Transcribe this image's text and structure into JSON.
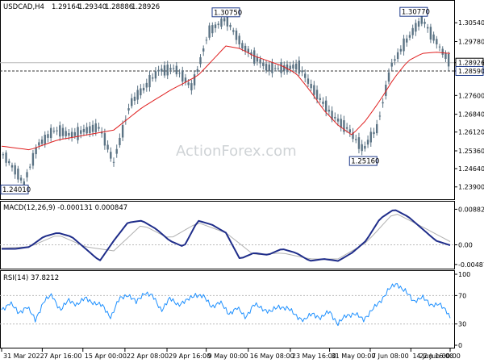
{
  "watermark": "ActionForex.com",
  "chart_data": [
    {
      "type": "candlestick",
      "panel": "price",
      "symbol": "USDCAD,H4",
      "ohlc": {
        "open": "1.29164",
        "high": "1.29340",
        "low": "1.28886",
        "close": "1.28926"
      },
      "ylim": [
        1.235,
        1.312
      ],
      "yticks": [
        "1.30540",
        "1.29780",
        "1.28926",
        "1.28590",
        "1.27600",
        "1.26840",
        "1.26120",
        "1.25360",
        "1.24640",
        "1.23900"
      ],
      "current_price": "1.28926",
      "level_line": "1.28590",
      "annotations": [
        {
          "text": "1.24010",
          "x": "31 Mar 2022",
          "y": 1.2401
        },
        {
          "text": "1.30750",
          "x": "12 May 2022",
          "y": 1.3075
        },
        {
          "text": "1.25160",
          "x": "8 Jun 2022",
          "y": 1.2516
        },
        {
          "text": "1.30770",
          "x": "17 Jun 2022",
          "y": 1.3077
        }
      ],
      "series": [
        {
          "name": "price",
          "color": "#5b7384",
          "x": [
            0,
            4,
            8,
            13,
            19,
            25,
            30,
            35,
            40,
            46,
            51,
            56,
            62,
            68,
            74,
            80,
            86,
            90,
            95,
            101,
            106,
            112,
            118,
            124,
            129,
            134,
            139,
            145,
            150,
            155,
            160
          ],
          "values": [
            1.253,
            1.247,
            1.2405,
            1.256,
            1.262,
            1.26,
            1.262,
            1.263,
            1.249,
            1.273,
            1.279,
            1.286,
            1.287,
            1.279,
            1.302,
            1.307,
            1.296,
            1.292,
            1.287,
            1.287,
            1.288,
            1.277,
            1.268,
            1.262,
            1.254,
            1.263,
            1.288,
            1.299,
            1.307,
            1.298,
            1.289
          ]
        },
        {
          "name": "moving average",
          "color": "#e02020",
          "x": [
            0,
            10,
            20,
            30,
            40,
            50,
            60,
            70,
            80,
            85,
            90,
            95,
            100,
            105,
            110,
            115,
            120,
            125,
            130,
            135,
            140,
            145,
            150,
            155,
            160
          ],
          "values": [
            1.2555,
            1.254,
            1.258,
            1.26,
            1.262,
            1.271,
            1.278,
            1.284,
            1.296,
            1.295,
            1.292,
            1.29,
            1.288,
            1.285,
            1.278,
            1.27,
            1.264,
            1.26,
            1.266,
            1.274,
            1.283,
            1.29,
            1.293,
            1.2935,
            1.293
          ]
        }
      ]
    },
    {
      "type": "line",
      "panel": "macd",
      "title": "MACD(12,26,9) -0.000131 0.000847",
      "ylim": [
        -0.0055,
        0.0095
      ],
      "yticks": [
        "0.00882",
        "0.00",
        "-0.004872"
      ],
      "series": [
        {
          "name": "macd",
          "color": "#1f2d8a",
          "x": [
            0,
            5,
            10,
            15,
            20,
            25,
            30,
            35,
            40,
            45,
            50,
            55,
            60,
            65,
            70,
            75,
            80,
            85,
            90,
            95,
            100,
            105,
            110,
            115,
            120,
            125,
            130,
            135,
            140,
            145,
            150,
            155,
            160
          ],
          "values": [
            -0.001,
            -0.001,
            -0.0005,
            0.002,
            0.003,
            0.002,
            -0.001,
            -0.004,
            0.001,
            0.0055,
            0.006,
            0.004,
            0.001,
            -0.0005,
            0.006,
            0.005,
            0.003,
            -0.0035,
            -0.002,
            -0.0025,
            -0.001,
            -0.002,
            -0.004,
            -0.0035,
            -0.004,
            -0.002,
            0.001,
            0.0065,
            0.0088,
            0.007,
            0.004,
            0.001,
            -0.0001
          ]
        },
        {
          "name": "signal",
          "color": "#b0b0b0",
          "x": [
            0,
            10,
            20,
            30,
            40,
            50,
            60,
            70,
            80,
            90,
            100,
            110,
            120,
            130,
            140,
            150,
            160
          ],
          "values": [
            -0.0008,
            -0.0005,
            0.0025,
            -0.0005,
            -0.0015,
            0.005,
            0.0015,
            0.0055,
            0.003,
            -0.0025,
            -0.002,
            -0.0035,
            -0.0035,
            0.0005,
            0.008,
            0.0045,
            0.0008
          ]
        }
      ]
    },
    {
      "type": "line",
      "panel": "rsi",
      "title": "RSI(14) 37.8212",
      "ylim": [
        0,
        100
      ],
      "yticks": [
        "100",
        "70",
        "30",
        "0"
      ],
      "series": [
        {
          "name": "rsi",
          "color": "#1e90ff",
          "x": [
            0,
            3,
            6,
            9,
            12,
            15,
            18,
            21,
            24,
            27,
            30,
            33,
            36,
            39,
            42,
            45,
            48,
            51,
            54,
            57,
            60,
            63,
            66,
            69,
            72,
            75,
            78,
            81,
            84,
            87,
            90,
            93,
            96,
            99,
            102,
            105,
            108,
            111,
            114,
            117,
            120,
            123,
            126,
            129,
            132,
            135,
            138,
            141,
            144,
            147,
            150,
            153,
            156,
            159,
            160
          ],
          "values": [
            50,
            60,
            45,
            55,
            35,
            62,
            70,
            50,
            63,
            58,
            66,
            60,
            55,
            40,
            65,
            72,
            60,
            75,
            68,
            50,
            65,
            58,
            62,
            72,
            68,
            55,
            60,
            45,
            52,
            40,
            57,
            52,
            47,
            55,
            52,
            42,
            35,
            45,
            38,
            48,
            30,
            42,
            45,
            35,
            50,
            60,
            80,
            85,
            78,
            60,
            70,
            55,
            60,
            45,
            38
          ]
        }
      ]
    }
  ],
  "x_axis": {
    "labels": [
      "31 Mar 2022",
      "7 Apr 16:00",
      "15 Apr 00:00",
      "22 Apr 08:00",
      "29 Apr 16:00",
      "9 May 00:00",
      "16 May 08:00",
      "23 May 16:00",
      "31 May 00:00",
      "7 Jun 08:00",
      "14 Jun 16:00",
      "22 Jun 00:00"
    ]
  },
  "colors": {
    "price": "#5b7384",
    "ma": "#e02020",
    "macd": "#1f2d8a",
    "signal": "#b0b0b0",
    "rsi": "#1e90ff",
    "frame": "#000000",
    "level_box": "#1e3a8a"
  }
}
